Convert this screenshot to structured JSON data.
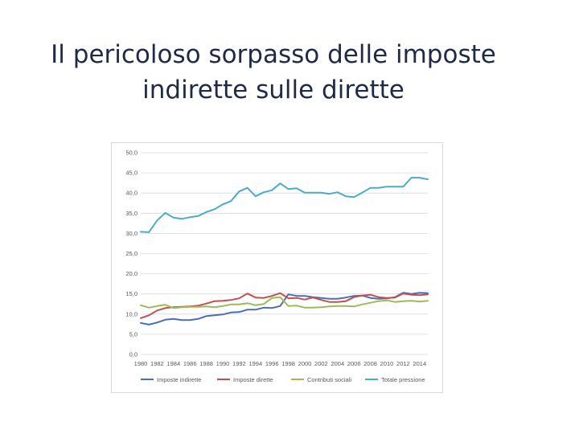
{
  "slide": {
    "title_line1": "Il pericoloso sorpasso delle imposte",
    "title_line2": "indirette sulle dirette"
  },
  "colors": {
    "imposte_indirette": "#4a6fb3",
    "imposte_dirette": "#c0504d",
    "contributi_sociali": "#9bbb59",
    "totale_pressione": "#4bacc6",
    "gridline": "#d9d9d9",
    "axis_text": "#595959"
  },
  "chart_data": {
    "type": "line",
    "title": "",
    "xlabel": "",
    "ylabel": "",
    "ylim": [
      0,
      50
    ],
    "yticks": [
      "0,0",
      "5,0",
      "10,0",
      "15,0",
      "20,0",
      "25,0",
      "30,0",
      "35,0",
      "40,0",
      "45,0",
      "50,0"
    ],
    "xticks": [
      "1980",
      "1982",
      "1984",
      "1986",
      "1988",
      "1990",
      "1992",
      "1994",
      "1996",
      "1998",
      "2000",
      "2002",
      "2004",
      "2006",
      "2008",
      "2010",
      "2012",
      "2014"
    ],
    "grid": true,
    "legend_position": "bottom",
    "x": [
      1980,
      1981,
      1982,
      1983,
      1984,
      1985,
      1986,
      1987,
      1988,
      1989,
      1990,
      1991,
      1992,
      1993,
      1994,
      1995,
      1996,
      1997,
      1998,
      1999,
      2000,
      2001,
      2002,
      2003,
      2004,
      2005,
      2006,
      2007,
      2008,
      2009,
      2010,
      2011,
      2012,
      2013,
      2014,
      2015
    ],
    "series": [
      {
        "name": "Imposte indirette",
        "values": [
          7.8,
          7.4,
          7.9,
          8.6,
          8.8,
          8.5,
          8.5,
          8.8,
          9.5,
          9.7,
          9.9,
          10.4,
          10.5,
          11.1,
          11.1,
          11.6,
          11.5,
          12.0,
          14.9,
          14.5,
          14.5,
          14.2,
          14.0,
          13.8,
          13.8,
          14.1,
          14.5,
          14.6,
          14.0,
          13.8,
          13.9,
          14.2,
          15.3,
          15.0,
          15.3,
          15.2
        ]
      },
      {
        "name": "Imposte dirette",
        "values": [
          9.0,
          9.7,
          10.9,
          11.5,
          11.7,
          11.8,
          11.9,
          12.1,
          12.6,
          13.2,
          13.3,
          13.5,
          13.9,
          15.1,
          14.1,
          14.0,
          14.5,
          15.2,
          13.9,
          14.0,
          13.6,
          14.1,
          13.5,
          13.0,
          13.0,
          13.2,
          14.2,
          14.6,
          14.8,
          14.2,
          14.0,
          14.1,
          15.1,
          14.8,
          14.7,
          14.9
        ]
      },
      {
        "name": "Contributi sociali",
        "values": [
          12.2,
          11.6,
          12.0,
          12.3,
          11.5,
          11.7,
          11.8,
          11.8,
          11.9,
          11.7,
          12.0,
          12.4,
          12.4,
          12.7,
          12.2,
          12.5,
          14.0,
          14.2,
          12.0,
          12.1,
          11.6,
          11.6,
          11.7,
          11.9,
          12.0,
          12.0,
          11.9,
          12.4,
          12.8,
          13.2,
          13.4,
          13.0,
          13.2,
          13.3,
          13.1,
          13.3
        ]
      },
      {
        "name": "Totale pressione",
        "values": [
          30.4,
          30.3,
          33.2,
          35.1,
          33.9,
          33.6,
          34.0,
          34.3,
          35.3,
          36.0,
          37.2,
          38.0,
          40.4,
          41.3,
          39.2,
          40.2,
          40.7,
          42.4,
          41.0,
          41.2,
          40.1,
          40.1,
          40.1,
          39.8,
          40.2,
          39.2,
          39.0,
          40.1,
          41.3,
          41.3,
          41.6,
          41.6,
          41.6,
          43.8,
          43.8,
          43.4
        ]
      }
    ]
  }
}
